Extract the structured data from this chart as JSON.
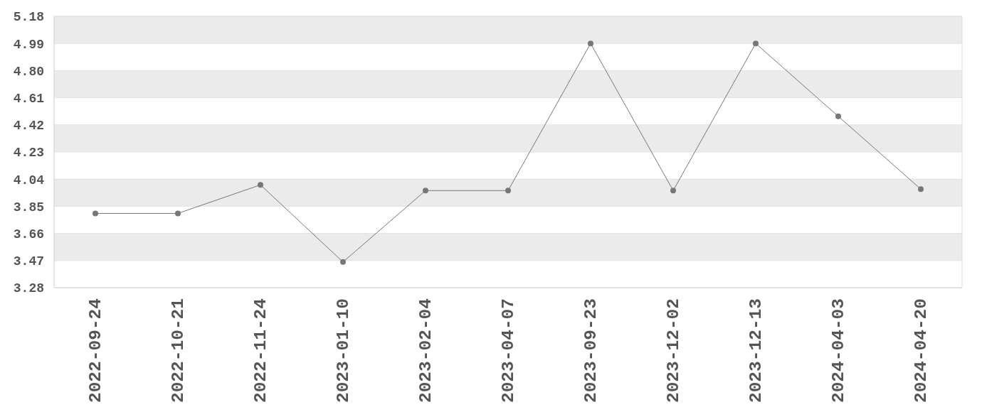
{
  "chart_data": {
    "type": "line",
    "categories": [
      "2022-09-24",
      "2022-10-21",
      "2022-11-24",
      "2023-01-10",
      "2023-02-04",
      "2023-04-07",
      "2023-09-23",
      "2023-12-02",
      "2023-12-13",
      "2024-04-03",
      "2024-04-20"
    ],
    "values": [
      3.8,
      3.8,
      4.0,
      3.46,
      3.96,
      3.96,
      4.99,
      3.96,
      4.99,
      4.48,
      3.97
    ],
    "color": "#777777",
    "ylim": [
      3.28,
      5.18
    ],
    "yticks": [
      3.28,
      3.47,
      3.66,
      3.85,
      4.04,
      4.23,
      4.42,
      4.61,
      {
        "value": 4.8,
        "label": "4.80"
      },
      4.99,
      5.18
    ],
    "grid": "y",
    "marker": "circle",
    "line_style": "solid"
  }
}
